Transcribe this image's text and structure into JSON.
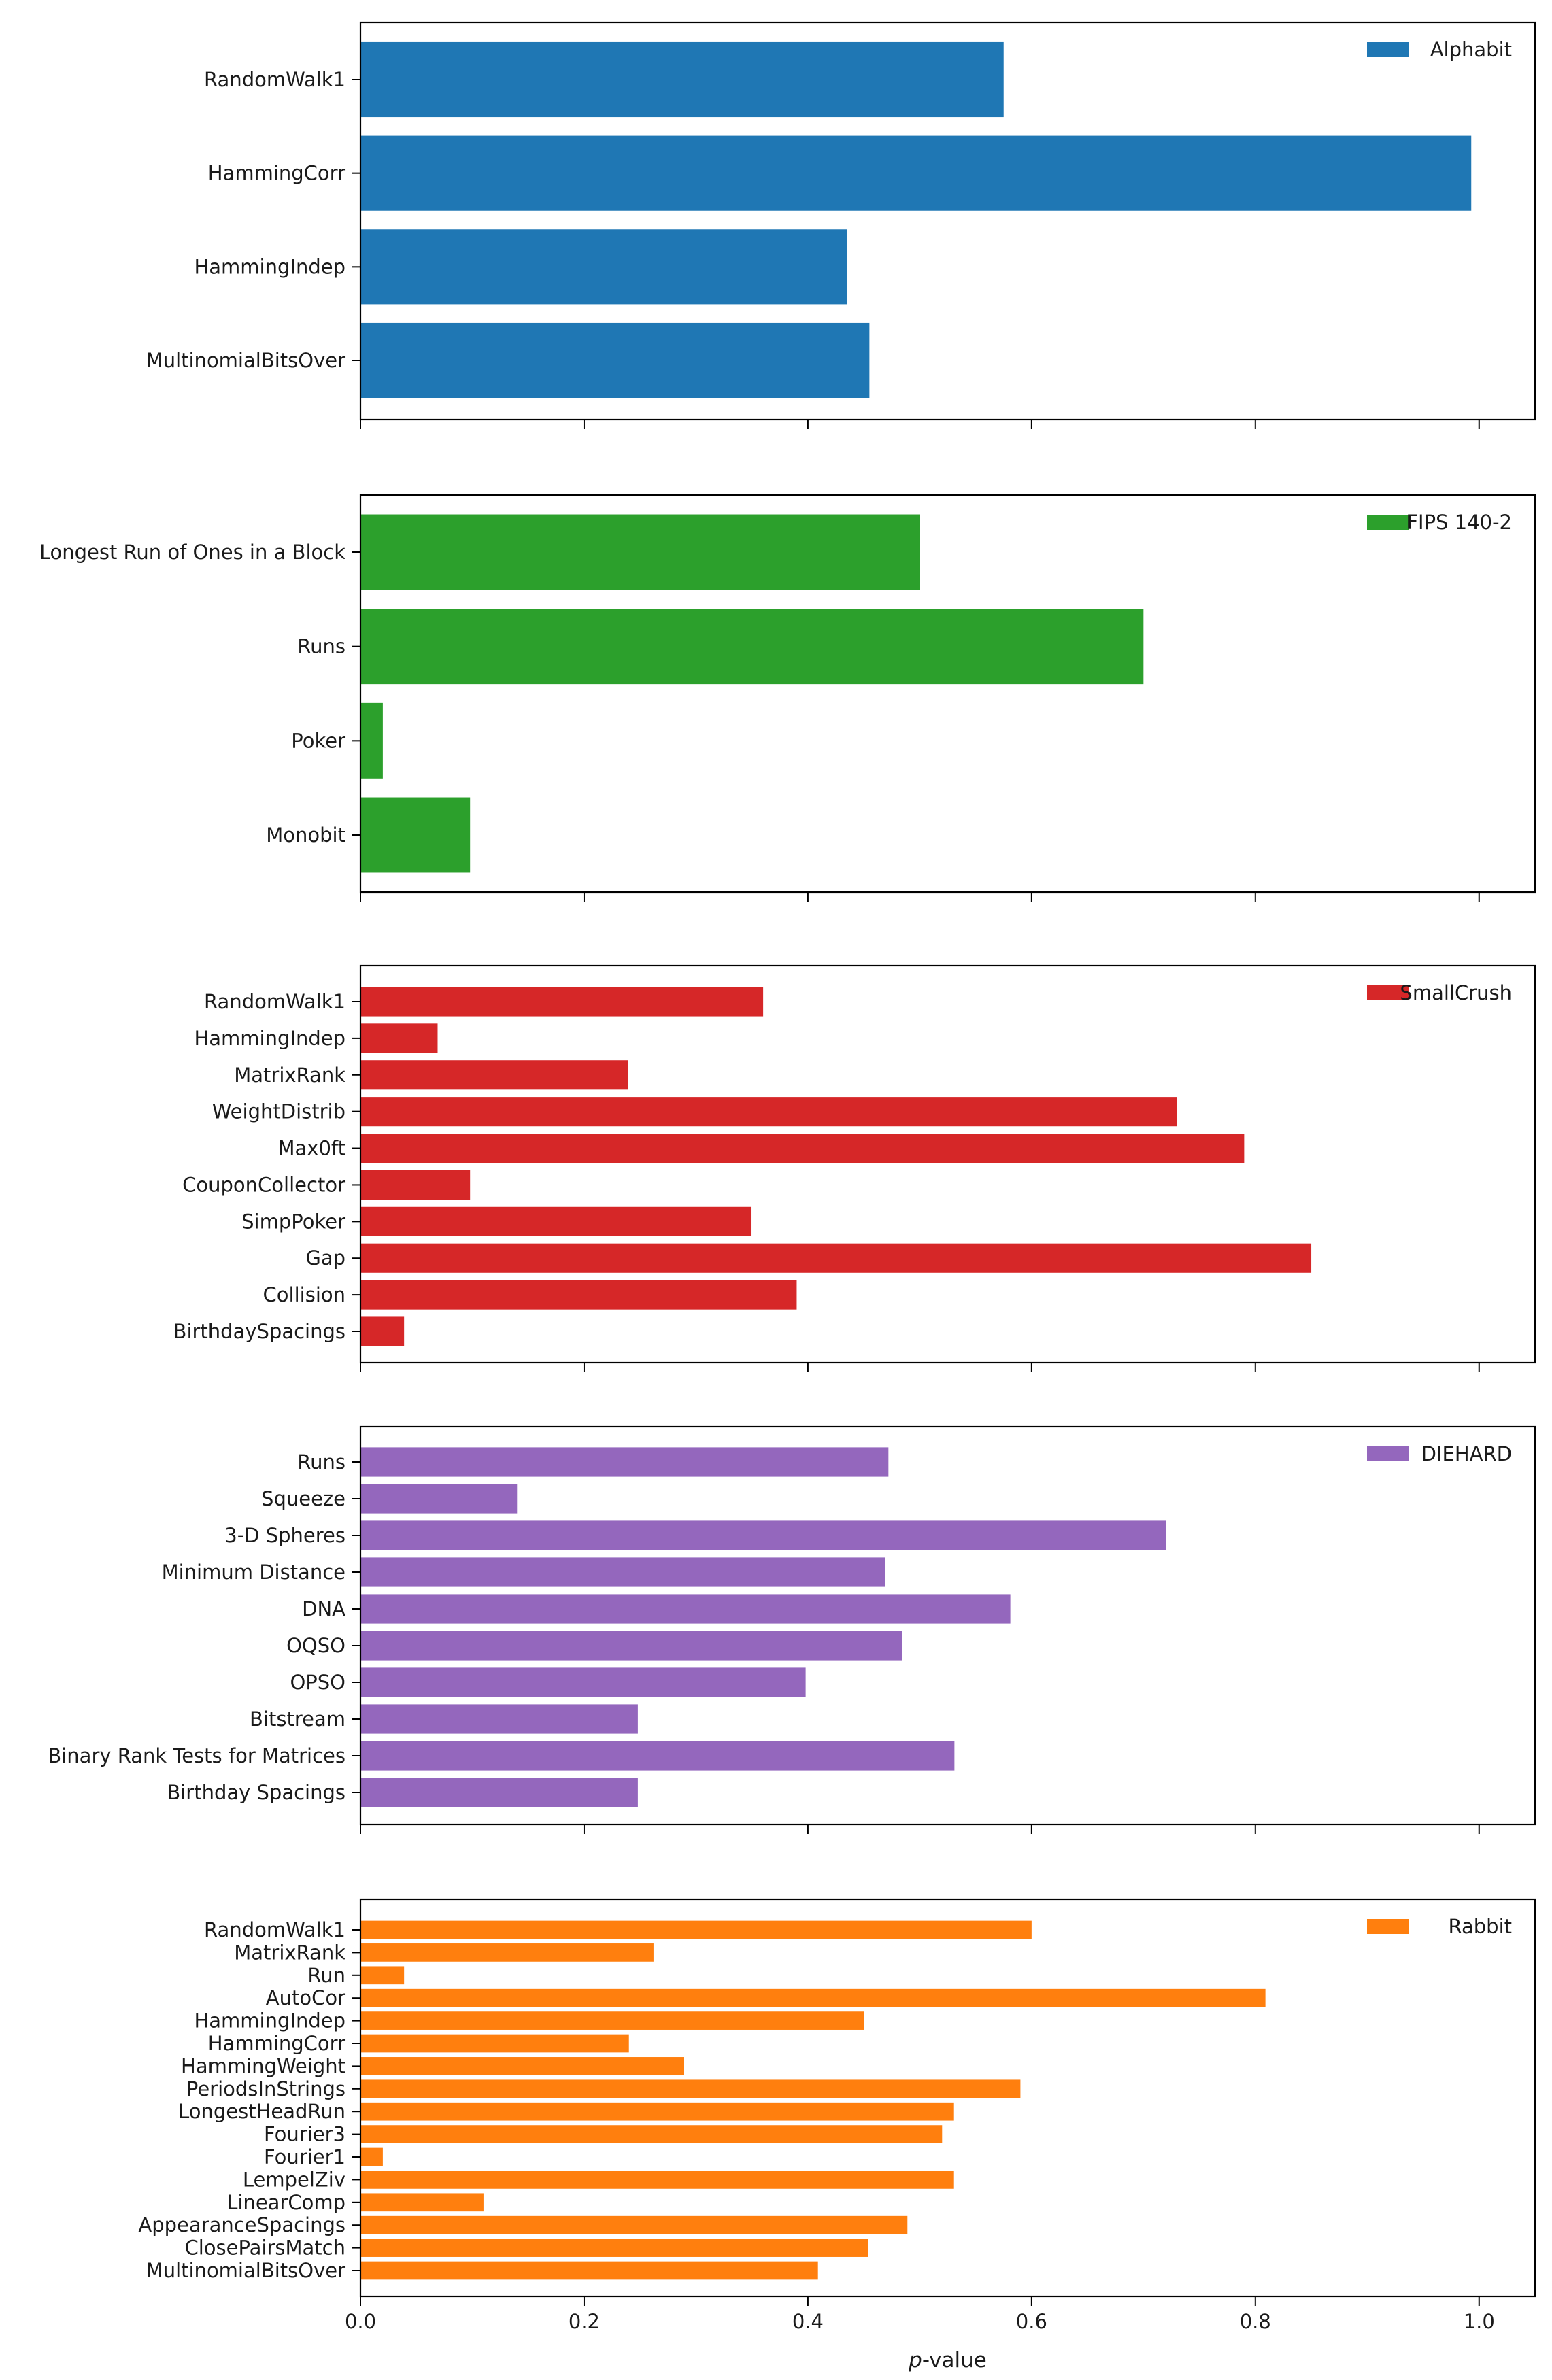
{
  "chart_data": {
    "type": "bar",
    "orientation": "horizontal",
    "xlim": [
      0,
      1.05
    ],
    "xticks": [
      "0.0",
      "0.2",
      "0.4",
      "0.6",
      "0.8",
      "1.0"
    ],
    "xlabel_prefix": "p",
    "xlabel_suffix": "-value",
    "panels": [
      {
        "name": "Alphabit",
        "color": "#1f77b4",
        "categories": [
          "RandomWalk1",
          "HammingCorr",
          "HammingIndep",
          "MultinomialBitsOver"
        ],
        "values": [
          0.575,
          0.993,
          0.435,
          0.455
        ]
      },
      {
        "name": "FIPS 140-2",
        "color": "#2ca02c",
        "categories": [
          "Longest Run of Ones in a Block",
          "Runs",
          "Poker",
          "Monobit"
        ],
        "values": [
          0.5,
          0.7,
          0.02,
          0.098
        ]
      },
      {
        "name": "SmallCrush",
        "color": "#d62728",
        "categories": [
          "RandomWalk1",
          "HammingIndep",
          "MatrixRank",
          "WeightDistrib",
          "Max0ft",
          "CouponCollector",
          "SimpPoker",
          "Gap",
          "Collision",
          "BirthdaySpacings"
        ],
        "values": [
          0.36,
          0.069,
          0.239,
          0.73,
          0.79,
          0.098,
          0.349,
          0.85,
          0.39,
          0.039
        ]
      },
      {
        "name": "DIEHARD",
        "color": "#9467bd",
        "categories": [
          "Runs",
          "Squeeze",
          "3-D Spheres",
          "Minimum Distance",
          "DNA",
          "OQSO",
          "OPSO",
          "Bitstream",
          "Binary Rank Tests for Matrices",
          "Birthday Spacings"
        ],
        "values": [
          0.472,
          0.14,
          0.72,
          0.469,
          0.581,
          0.484,
          0.398,
          0.248,
          0.531,
          0.248
        ]
      },
      {
        "name": "Rabbit",
        "color": "#ff7f0e",
        "categories": [
          "RandomWalk1",
          "MatrixRank",
          "Run",
          "AutoCor",
          "HammingIndep",
          "HammingCorr",
          "HammingWeight",
          "PeriodsInStrings",
          "LongestHeadRun",
          "Fourier3",
          "Fourier1",
          "LempelZiv",
          "LinearComp",
          "AppearanceSpacings",
          "ClosePairsMatch",
          "MultinomialBitsOver"
        ],
        "values": [
          0.6,
          0.262,
          0.039,
          0.809,
          0.45,
          0.24,
          0.289,
          0.59,
          0.53,
          0.52,
          0.02,
          0.53,
          0.11,
          0.489,
          0.454,
          0.409
        ]
      }
    ]
  }
}
